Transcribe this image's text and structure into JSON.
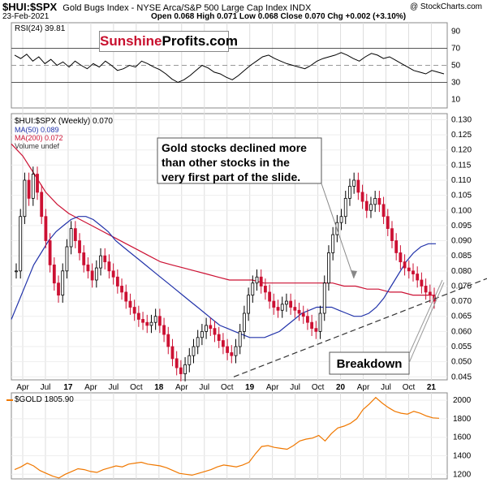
{
  "header": {
    "symbol": "$HUI:$SPX",
    "title": "Gold Bugs Index - NYSE Arca/S&P 500 Large Cap Index INDX",
    "credit": "@ StockCharts.com",
    "date": "23-Feb-2021",
    "ohlc": "Open 0.068  High 0.071  Low 0.068  Close 0.070  Chg +0.002 (+3.10%)"
  },
  "logo": {
    "part1": "Sunshine",
    "part2": "Profits.com"
  },
  "colors": {
    "up": "#000000",
    "down": "#cc1133",
    "ma50": "#2233aa",
    "ma200": "#cc1133",
    "gold": "#f07800",
    "trend": "#333333"
  },
  "chart_data": [
    {
      "type": "line",
      "legend": "RSI(24) 39.81",
      "ylim": [
        0,
        100
      ],
      "yticks": [
        10,
        30,
        50,
        70,
        90
      ],
      "reference_lines": [
        30,
        50,
        70
      ],
      "values": [
        62,
        58,
        63,
        55,
        60,
        52,
        57,
        50,
        54,
        48,
        55,
        50,
        46,
        52,
        48,
        55,
        50,
        44,
        46,
        50,
        48,
        55,
        52,
        48,
        45,
        40,
        34,
        30,
        33,
        38,
        44,
        50,
        47,
        42,
        40,
        36,
        33,
        38,
        44,
        50,
        55,
        60,
        62,
        58,
        55,
        52,
        50,
        48,
        46,
        50,
        55,
        58,
        60,
        62,
        65,
        62,
        58,
        55,
        60,
        64,
        62,
        58,
        60,
        56,
        52,
        48,
        44,
        42,
        40,
        44,
        42,
        40
      ]
    },
    {
      "type": "candlestick",
      "legend": [
        "$HUI:$SPX (Weekly) 0.070",
        "MA(50) 0.089",
        "MA(200) 0.072",
        "Volume undef"
      ],
      "ylim": [
        0.044,
        0.132
      ],
      "yticks": [
        0.045,
        0.05,
        0.055,
        0.06,
        0.065,
        0.07,
        0.075,
        0.08,
        0.085,
        0.09,
        0.095,
        0.1,
        0.105,
        0.11,
        0.115,
        0.12,
        0.125,
        0.13
      ],
      "x_labels": [
        "Apr",
        "Jul",
        "17",
        "Apr",
        "Jul",
        "Oct",
        "18",
        "Apr",
        "Jul",
        "Oct",
        "19",
        "Apr",
        "Jul",
        "Oct",
        "20",
        "Apr",
        "Jul",
        "Oct",
        "21"
      ],
      "closes": [
        0.08,
        0.098,
        0.11,
        0.104,
        0.112,
        0.106,
        0.098,
        0.09,
        0.082,
        0.076,
        0.072,
        0.08,
        0.088,
        0.094,
        0.09,
        0.086,
        0.082,
        0.08,
        0.077,
        0.081,
        0.085,
        0.083,
        0.08,
        0.078,
        0.075,
        0.073,
        0.07,
        0.068,
        0.066,
        0.064,
        0.063,
        0.062,
        0.063,
        0.065,
        0.062,
        0.059,
        0.055,
        0.051,
        0.048,
        0.046,
        0.049,
        0.052,
        0.055,
        0.058,
        0.06,
        0.062,
        0.061,
        0.059,
        0.057,
        0.055,
        0.053,
        0.052,
        0.055,
        0.06,
        0.066,
        0.072,
        0.076,
        0.078,
        0.075,
        0.073,
        0.07,
        0.068,
        0.067,
        0.069,
        0.07,
        0.068,
        0.067,
        0.066,
        0.065,
        0.063,
        0.061,
        0.06,
        0.066,
        0.076,
        0.086,
        0.092,
        0.096,
        0.098,
        0.104,
        0.108,
        0.11,
        0.106,
        0.103,
        0.1,
        0.102,
        0.104,
        0.102,
        0.098,
        0.094,
        0.09,
        0.086,
        0.083,
        0.081,
        0.08,
        0.079,
        0.077,
        0.075,
        0.073,
        0.072,
        0.07
      ],
      "ma50": [
        0.064,
        0.07,
        0.076,
        0.082,
        0.086,
        0.09,
        0.093,
        0.095,
        0.097,
        0.098,
        0.098,
        0.097,
        0.095,
        0.093,
        0.09,
        0.088,
        0.086,
        0.084,
        0.082,
        0.08,
        0.078,
        0.076,
        0.074,
        0.072,
        0.07,
        0.068,
        0.066,
        0.064,
        0.062,
        0.061,
        0.06,
        0.059,
        0.058,
        0.058,
        0.058,
        0.059,
        0.06,
        0.062,
        0.064,
        0.066,
        0.067,
        0.068,
        0.068,
        0.068,
        0.067,
        0.066,
        0.065,
        0.065,
        0.066,
        0.068,
        0.071,
        0.075,
        0.079,
        0.083,
        0.086,
        0.088,
        0.089,
        0.089
      ],
      "ma200": [
        0.122,
        0.118,
        0.112,
        0.106,
        0.102,
        0.099,
        0.097,
        0.095,
        0.093,
        0.091,
        0.089,
        0.087,
        0.085,
        0.083,
        0.082,
        0.081,
        0.08,
        0.079,
        0.078,
        0.077,
        0.077,
        0.077,
        0.076,
        0.076,
        0.076,
        0.076,
        0.076,
        0.076,
        0.076,
        0.075,
        0.075,
        0.074,
        0.074,
        0.073,
        0.073,
        0.072,
        0.072,
        0.072
      ],
      "trendline": {
        "x": [
          "Oct 2018",
          "Mar 2021"
        ],
        "y": [
          0.045,
          0.075
        ]
      },
      "annotations": [
        {
          "text": "Gold stocks declined more than other stocks in the very first part of the slide.",
          "lines": [
            "Gold stocks declined more",
            "than other stocks in the",
            "very first part of the slide."
          ]
        },
        {
          "text": "Breakdown"
        }
      ]
    },
    {
      "type": "line",
      "legend": "$GOLD 1805.90",
      "ylim": [
        1150,
        2080
      ],
      "yticks": [
        1200,
        1400,
        1600,
        1800,
        2000
      ],
      "values": [
        1250,
        1280,
        1320,
        1290,
        1240,
        1210,
        1180,
        1160,
        1200,
        1230,
        1260,
        1250,
        1230,
        1220,
        1250,
        1270,
        1290,
        1280,
        1310,
        1320,
        1330,
        1310,
        1300,
        1290,
        1270,
        1240,
        1210,
        1200,
        1190,
        1210,
        1230,
        1250,
        1280,
        1300,
        1290,
        1280,
        1300,
        1330,
        1420,
        1500,
        1510,
        1490,
        1480,
        1470,
        1510,
        1560,
        1580,
        1590,
        1620,
        1560,
        1640,
        1700,
        1720,
        1750,
        1800,
        1900,
        1960,
        2030,
        1970,
        1920,
        1880,
        1860,
        1850,
        1880,
        1860,
        1830,
        1810,
        1805
      ]
    }
  ]
}
